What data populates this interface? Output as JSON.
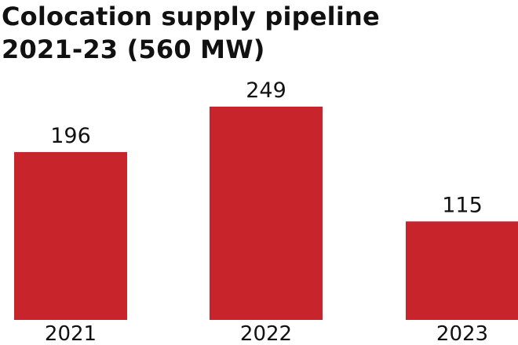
{
  "chart_data": {
    "type": "bar",
    "title": "Colocation supply pipeline 2021-23 (560 MW)",
    "title_lines": [
      "Colocation supply pipeline",
      "2021-23 (560 MW)"
    ],
    "categories": [
      "2021",
      "2022",
      "2023"
    ],
    "values": [
      196,
      249,
      115
    ],
    "xlabel": "",
    "ylabel": "",
    "ylim": [
      0,
      249
    ],
    "grid": false,
    "legend": "none",
    "bar_color": "#c8242b"
  }
}
